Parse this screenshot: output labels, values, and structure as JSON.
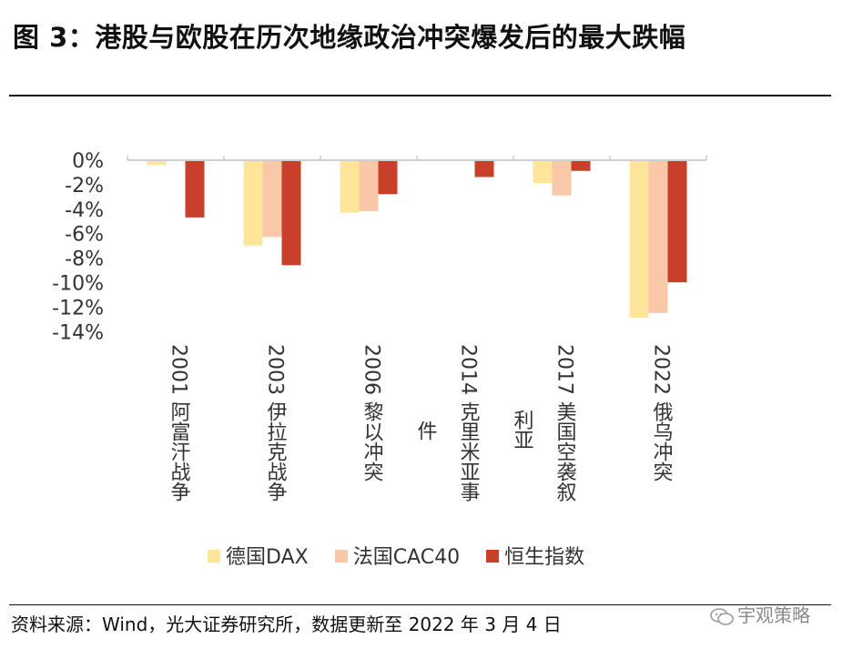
{
  "page": {
    "title": "图 3：港股与欧股在历次地缘政治冲突爆发后的最大跌幅",
    "source": "资料来源：Wind，光大证券研究所，数据更新至 2022 年 3 月 4 日",
    "watermark": "宇观策略"
  },
  "colors": {
    "dax": "#ffe599",
    "cac40": "#f8c8a8",
    "hsi": "#c8402a",
    "axis": "#bfbfbf"
  },
  "chart_data": {
    "type": "bar",
    "title": "",
    "xlabel": "",
    "ylabel": "",
    "ylim": [
      -14,
      0
    ],
    "yticks": [
      0,
      -2,
      -4,
      -6,
      -8,
      -10,
      -12,
      -14
    ],
    "ytick_labels": [
      "0%",
      "-2%",
      "-4%",
      "-6%",
      "-8%",
      "-10%",
      "-12%",
      "-14%"
    ],
    "legend_position": "bottom",
    "categories": [
      {
        "year": "2001",
        "label": "阿富汗战争",
        "extra": ""
      },
      {
        "year": "2003",
        "label": "伊拉克战争",
        "extra": ""
      },
      {
        "year": "2006",
        "label": "黎以冲突",
        "extra": ""
      },
      {
        "year": "2014",
        "label": "克里米亚事",
        "extra": "件"
      },
      {
        "year": "2017",
        "label": "美国空袭叙",
        "extra": "利亚"
      },
      {
        "year": "2022",
        "label": "俄乌冲突",
        "extra": ""
      }
    ],
    "series": [
      {
        "name": "德国DAX",
        "color_key": "dax",
        "values": [
          -0.3,
          -6.9,
          -4.2,
          0,
          -1.8,
          -12.8
        ]
      },
      {
        "name": "法国CAC40",
        "color_key": "cac40",
        "values": [
          0,
          -6.2,
          -4.1,
          0,
          -2.8,
          -12.4
        ]
      },
      {
        "name": "恒生指数",
        "color_key": "hsi",
        "values": [
          -4.6,
          -8.5,
          -2.7,
          -1.3,
          -0.8,
          -9.9
        ]
      }
    ]
  }
}
